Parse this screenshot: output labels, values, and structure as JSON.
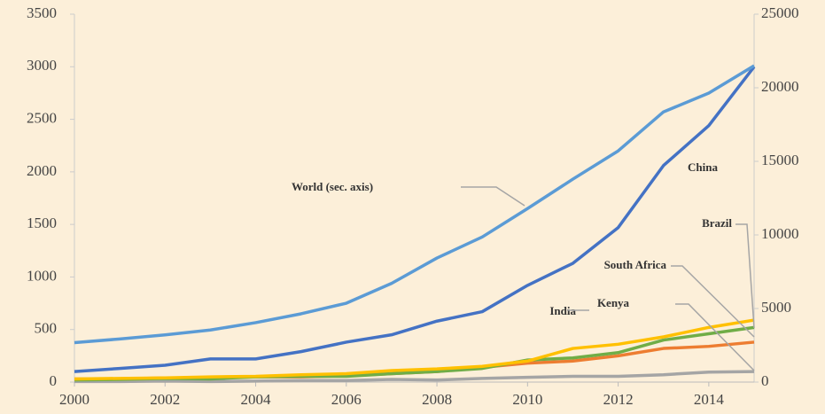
{
  "chart_data": {
    "type": "line",
    "x": [
      2000,
      2001,
      2002,
      2003,
      2004,
      2005,
      2006,
      2007,
      2008,
      2009,
      2010,
      2011,
      2012,
      2013,
      2014,
      2015
    ],
    "xlim": [
      2000,
      2015
    ],
    "xticks": [
      2000,
      2002,
      2004,
      2006,
      2008,
      2010,
      2012,
      2014
    ],
    "ylim": [
      0,
      3500
    ],
    "yticks": [
      0,
      500,
      1000,
      1500,
      2000,
      2500,
      3000,
      3500
    ],
    "y2lim": [
      0,
      25000
    ],
    "y2ticks": [
      0,
      5000,
      10000,
      15000,
      20000,
      25000
    ],
    "series": [
      {
        "name": "World (sec. axis)",
        "color": "#5b9bd5",
        "axis": "y2",
        "values": [
          2680,
          2930,
          3210,
          3540,
          4040,
          4640,
          5360,
          6710,
          8430,
          9860,
          11790,
          13790,
          15710,
          18360,
          19640,
          21500
        ]
      },
      {
        "name": "China",
        "color": "#4472c4",
        "values": [
          100,
          130,
          160,
          220,
          220,
          290,
          380,
          450,
          580,
          670,
          920,
          1130,
          1470,
          2060,
          2440,
          3000
        ]
      },
      {
        "name": "India",
        "color": "#ffc000",
        "values": [
          30,
          35,
          40,
          50,
          55,
          70,
          80,
          110,
          125,
          150,
          200,
          320,
          360,
          430,
          520,
          590
        ]
      },
      {
        "name": "Brazil",
        "color": "#70ad47",
        "values": [
          20,
          25,
          35,
          30,
          50,
          55,
          55,
          80,
          100,
          130,
          210,
          230,
          280,
          400,
          460,
          520
        ]
      },
      {
        "name": "South Africa",
        "color": "#ed7d31",
        "values": [
          30,
          30,
          40,
          40,
          50,
          50,
          60,
          80,
          100,
          140,
          180,
          200,
          250,
          320,
          340,
          380
        ]
      },
      {
        "name": "Kenya",
        "color": "#a5a5a5",
        "values": [
          5,
          5,
          10,
          5,
          10,
          15,
          15,
          25,
          20,
          35,
          45,
          55,
          55,
          70,
          95,
          100
        ]
      }
    ]
  }
}
